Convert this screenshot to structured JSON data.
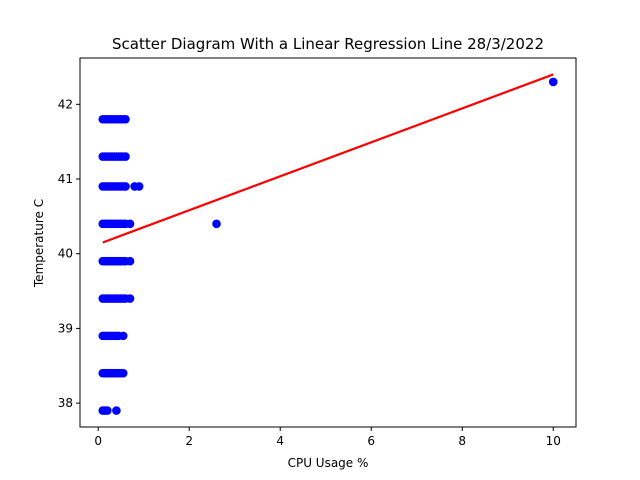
{
  "chart_data": {
    "type": "scatter",
    "title": "Scatter Diagram With a Linear Regression Line 28/3/2022",
    "xlabel": "CPU Usage %",
    "ylabel": "Temperature C",
    "xlim": [
      -0.4,
      10.5
    ],
    "ylim": [
      37.68,
      42.62
    ],
    "x_ticks": [
      0,
      2,
      4,
      6,
      8,
      10
    ],
    "y_ticks": [
      38,
      39,
      40,
      41,
      42
    ],
    "grid": false,
    "point_color": "#0000ff",
    "line_color": "#ff0000",
    "series": [
      {
        "type": "scatter",
        "points": [
          [
            0.1,
            41.8
          ],
          [
            0.15,
            41.8
          ],
          [
            0.2,
            41.8
          ],
          [
            0.25,
            41.8
          ],
          [
            0.3,
            41.8
          ],
          [
            0.35,
            41.8
          ],
          [
            0.4,
            41.8
          ],
          [
            0.45,
            41.8
          ],
          [
            0.5,
            41.8
          ],
          [
            0.55,
            41.8
          ],
          [
            0.6,
            41.8
          ],
          [
            0.1,
            41.3
          ],
          [
            0.15,
            41.3
          ],
          [
            0.2,
            41.3
          ],
          [
            0.25,
            41.3
          ],
          [
            0.3,
            41.3
          ],
          [
            0.35,
            41.3
          ],
          [
            0.4,
            41.3
          ],
          [
            0.45,
            41.3
          ],
          [
            0.5,
            41.3
          ],
          [
            0.55,
            41.3
          ],
          [
            0.6,
            41.3
          ],
          [
            0.1,
            40.9
          ],
          [
            0.15,
            40.9
          ],
          [
            0.2,
            40.9
          ],
          [
            0.25,
            40.9
          ],
          [
            0.3,
            40.9
          ],
          [
            0.35,
            40.9
          ],
          [
            0.4,
            40.9
          ],
          [
            0.45,
            40.9
          ],
          [
            0.5,
            40.9
          ],
          [
            0.55,
            40.9
          ],
          [
            0.6,
            40.9
          ],
          [
            0.8,
            40.9
          ],
          [
            0.9,
            40.9
          ],
          [
            0.1,
            40.4
          ],
          [
            0.15,
            40.4
          ],
          [
            0.2,
            40.4
          ],
          [
            0.25,
            40.4
          ],
          [
            0.3,
            40.4
          ],
          [
            0.35,
            40.4
          ],
          [
            0.4,
            40.4
          ],
          [
            0.45,
            40.4
          ],
          [
            0.5,
            40.4
          ],
          [
            0.55,
            40.4
          ],
          [
            0.6,
            40.4
          ],
          [
            0.7,
            40.4
          ],
          [
            2.6,
            40.4
          ],
          [
            0.1,
            39.9
          ],
          [
            0.15,
            39.9
          ],
          [
            0.2,
            39.9
          ],
          [
            0.25,
            39.9
          ],
          [
            0.3,
            39.9
          ],
          [
            0.35,
            39.9
          ],
          [
            0.4,
            39.9
          ],
          [
            0.45,
            39.9
          ],
          [
            0.5,
            39.9
          ],
          [
            0.55,
            39.9
          ],
          [
            0.6,
            39.9
          ],
          [
            0.7,
            39.9
          ],
          [
            0.1,
            39.4
          ],
          [
            0.15,
            39.4
          ],
          [
            0.2,
            39.4
          ],
          [
            0.25,
            39.4
          ],
          [
            0.3,
            39.4
          ],
          [
            0.35,
            39.4
          ],
          [
            0.4,
            39.4
          ],
          [
            0.45,
            39.4
          ],
          [
            0.5,
            39.4
          ],
          [
            0.55,
            39.4
          ],
          [
            0.6,
            39.4
          ],
          [
            0.7,
            39.4
          ],
          [
            0.1,
            38.9
          ],
          [
            0.15,
            38.9
          ],
          [
            0.2,
            38.9
          ],
          [
            0.25,
            38.9
          ],
          [
            0.3,
            38.9
          ],
          [
            0.35,
            38.9
          ],
          [
            0.4,
            38.9
          ],
          [
            0.45,
            38.9
          ],
          [
            0.55,
            38.9
          ],
          [
            0.1,
            38.4
          ],
          [
            0.15,
            38.4
          ],
          [
            0.2,
            38.4
          ],
          [
            0.25,
            38.4
          ],
          [
            0.3,
            38.4
          ],
          [
            0.35,
            38.4
          ],
          [
            0.4,
            38.4
          ],
          [
            0.45,
            38.4
          ],
          [
            0.5,
            38.4
          ],
          [
            0.55,
            38.4
          ],
          [
            0.1,
            37.9
          ],
          [
            0.15,
            37.9
          ],
          [
            0.2,
            37.9
          ],
          [
            0.4,
            37.9
          ],
          [
            10.0,
            42.3
          ]
        ]
      },
      {
        "type": "line",
        "points": [
          [
            0.1,
            40.15
          ],
          [
            10.0,
            42.4
          ]
        ]
      }
    ]
  }
}
